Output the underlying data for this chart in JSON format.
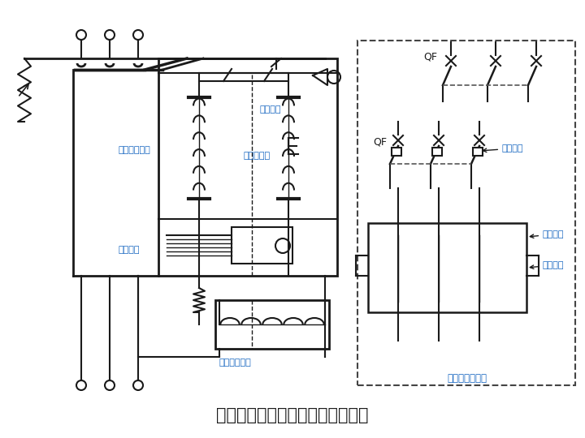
{
  "title": "断路器工作原理示意图及图形符号",
  "title_fontsize": 15,
  "bg_color": "#ffffff",
  "line_color": "#1a1a1a",
  "blue_label_color": "#1565c0",
  "labels": {
    "over_current": "过电流脱扣器",
    "thermal": "热脱扣器",
    "remote_restore": "远控恢复",
    "shunt": "分励脱扣器",
    "undervoltage": "失电压脱扣器",
    "qf_label1": "QF",
    "qf_label2": "QF",
    "undervoltage_prot": "失压保护",
    "overcurrent_prot1": "过流保护",
    "overcurrent_prot2": "过流保护",
    "symbol_label": "断路器图形符号"
  }
}
